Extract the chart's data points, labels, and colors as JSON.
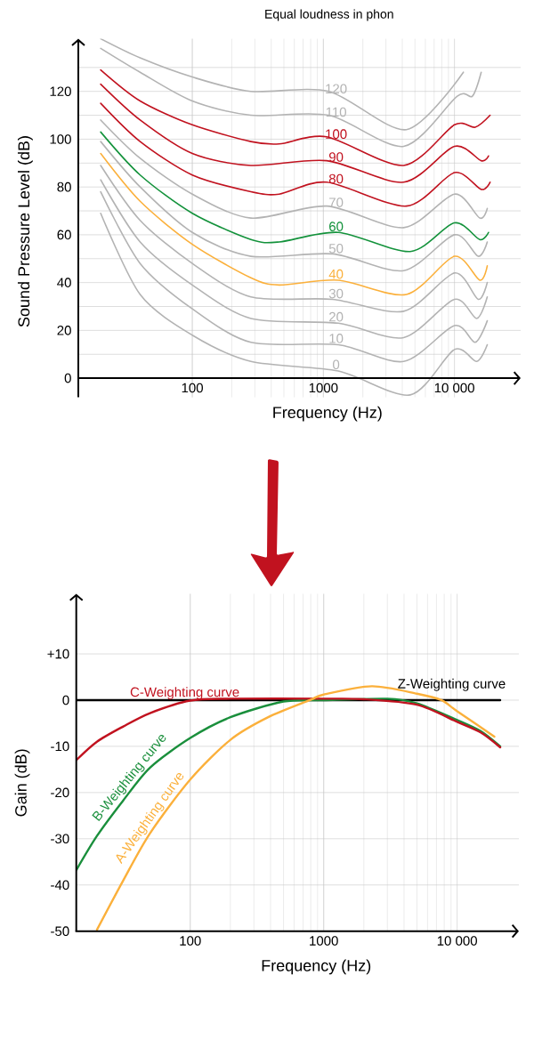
{
  "chart_data": [
    {
      "type": "line",
      "title": "Equal loudness in phon",
      "xlabel": "Frequency (Hz)",
      "ylabel": "Sound Pressure Level (dB)",
      "log": "x",
      "grid": true,
      "xlim": [
        13.5,
        32000
      ],
      "ylim": [
        -8,
        142
      ],
      "xticks": [
        100,
        1000,
        {
          "value": 10000,
          "label": "10 000"
        }
      ],
      "yticks": [
        0,
        {
          "value": 10,
          "label": null
        },
        20,
        {
          "value": 30,
          "label": null
        },
        40,
        {
          "value": 50,
          "label": null
        },
        60,
        {
          "value": 70,
          "label": null
        },
        80,
        {
          "value": 90,
          "label": null
        },
        100,
        {
          "value": 110,
          "label": null
        },
        120,
        {
          "value": 130,
          "label": null
        }
      ],
      "series": [
        {
          "name": "120",
          "color": "#b3b3b3",
          "x": [
            20,
            40,
            100,
            280,
            1100,
            4300,
            11700
          ],
          "values": [
            142,
            134,
            126,
            120,
            120,
            104,
            128
          ]
        },
        {
          "name": "110",
          "color": "#b3b3b3",
          "x": [
            20,
            40,
            100,
            280,
            1100,
            4100,
            10500,
            13700,
            16000
          ],
          "values": [
            138,
            128,
            116,
            110,
            110,
            97,
            118,
            118,
            128
          ]
        },
        {
          "name": "100",
          "color": "#c1121f",
          "x": [
            20,
            40,
            100,
            280,
            460,
            1060,
            4100,
            10000,
            14400,
            18700
          ],
          "values": [
            129,
            116,
            106,
            99,
            98,
            101,
            89,
            106,
            105,
            110
          ]
        },
        {
          "name": "90",
          "color": "#c1121f",
          "x": [
            20,
            40,
            100,
            280,
            1060,
            4100,
            10000,
            16000,
            18200
          ],
          "values": [
            123,
            108,
            94,
            89,
            91,
            82,
            97,
            91,
            93
          ]
        },
        {
          "name": "80",
          "color": "#c1121f",
          "x": [
            20,
            40,
            100,
            280,
            460,
            1060,
            4300,
            10000,
            16000,
            18700
          ],
          "values": [
            115,
            99,
            85,
            78,
            77,
            82,
            72,
            86,
            79,
            82
          ]
        },
        {
          "name": "70",
          "color": "#b3b3b3",
          "x": [
            20,
            40,
            100,
            280,
            1060,
            4100,
            10000,
            15600,
            17800
          ],
          "values": [
            108,
            92,
            77,
            67,
            72,
            63,
            77,
            67,
            71
          ]
        },
        {
          "name": "60",
          "color": "#13923b",
          "x": [
            20,
            40,
            100,
            280,
            460,
            1300,
            4600,
            10000,
            15600,
            18200
          ],
          "values": [
            103,
            85,
            69,
            58,
            57,
            61,
            53,
            65,
            58,
            61
          ]
        },
        {
          "name": "50",
          "color": "#b3b3b3",
          "x": [
            20,
            40,
            100,
            280,
            1175,
            4100,
            10000,
            15200,
            17800
          ],
          "values": [
            99,
            80,
            61,
            51,
            52,
            45,
            60,
            51,
            57
          ]
        },
        {
          "name": "40",
          "color": "#fbb03b",
          "x": [
            20,
            40,
            100,
            280,
            460,
            1300,
            4300,
            10000,
            15600,
            17800
          ],
          "values": [
            94,
            74,
            56,
            42,
            39,
            41,
            35,
            51,
            41,
            47
          ]
        },
        {
          "name": "30",
          "color": "#b3b3b3",
          "x": [
            20,
            40,
            100,
            280,
            1175,
            4100,
            10000,
            15200,
            17800
          ],
          "values": [
            89,
            66,
            48,
            34,
            33,
            28,
            44,
            33,
            40
          ]
        },
        {
          "name": "20",
          "color": "#b3b3b3",
          "x": [
            20,
            40,
            100,
            280,
            1300,
            4100,
            10000,
            14800,
            17800
          ],
          "values": [
            83,
            57,
            39,
            25,
            23,
            17,
            33,
            25,
            34
          ]
        },
        {
          "name": "10",
          "color": "#b3b3b3",
          "x": [
            20,
            40,
            100,
            280,
            1300,
            4100,
            10000,
            14400,
            17800
          ],
          "values": [
            78,
            48,
            29,
            15,
            14,
            7,
            22,
            15,
            24
          ]
        },
        {
          "name": "0",
          "color": "#b3b3b3",
          "x": [
            20,
            40,
            100,
            280,
            1300,
            4600,
            10000,
            14800,
            17800
          ],
          "values": [
            69,
            35,
            18,
            7,
            3,
            -7,
            12,
            7,
            14
          ]
        }
      ]
    },
    {
      "type": "line",
      "xlabel": "Frequency (Hz)",
      "ylabel": "Gain (dB)",
      "log": "x",
      "grid": true,
      "xlim": [
        14,
        29000
      ],
      "ylim": [
        -50,
        23
      ],
      "xticks": [
        100,
        1000,
        {
          "value": 10000,
          "label": "10 000"
        }
      ],
      "yticks": [
        -50,
        -40,
        -30,
        -20,
        -10,
        0,
        {
          "value": 10,
          "label": "+10"
        }
      ],
      "series": [
        {
          "name": "Z-Weighting curve",
          "color": "#000000",
          "x": [
            14,
            21000
          ],
          "values": [
            0,
            0
          ]
        },
        {
          "name": "B-Weighting curve",
          "color": "#1a8f3c",
          "x": [
            14,
            20,
            31.5,
            50,
            100,
            200,
            500,
            1000,
            3000,
            5000,
            10000,
            15000,
            21000
          ],
          "values": [
            -36.8,
            -29.4,
            -21.7,
            -14.6,
            -8.2,
            -3.7,
            -0.3,
            0,
            0.3,
            -0.7,
            -4.3,
            -6.7,
            -10
          ]
        },
        {
          "name": "C-Weighting curve",
          "color": "#c1121f",
          "x": [
            14,
            20,
            31.5,
            50,
            100,
            200,
            1000,
            2000,
            5000,
            10000,
            15000,
            21000
          ],
          "values": [
            -13,
            -9,
            -5.7,
            -2.8,
            -0.1,
            0.3,
            0.3,
            0.2,
            -1,
            -4.7,
            -7,
            -10.2
          ]
        },
        {
          "name": "A-Weighting curve",
          "color": "#fbb03b",
          "x": [
            20,
            31.5,
            50,
            100,
            200,
            384,
            790,
            1000,
            2300,
            5000,
            7600,
            10000,
            19000
          ],
          "values": [
            -49.7,
            -39,
            -28.8,
            -17.2,
            -8.6,
            -3.7,
            0,
            1.2,
            3,
            1.4,
            0,
            -2.4,
            -7.9
          ]
        }
      ]
    }
  ]
}
